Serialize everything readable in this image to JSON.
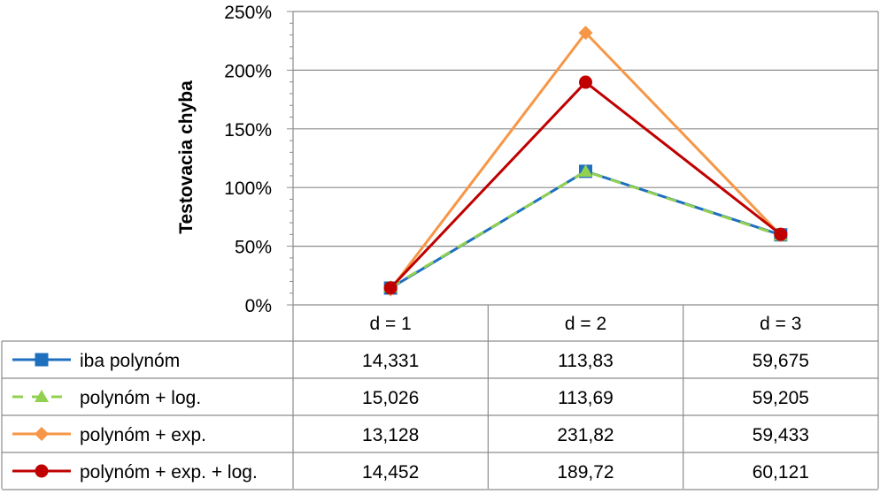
{
  "chart_data": {
    "type": "line",
    "title": "",
    "ylabel": "Testovacia chyba",
    "xlabel": "",
    "categories": [
      "d = 1",
      "d = 2",
      "d = 3"
    ],
    "ylim": [
      0,
      250
    ],
    "y_ticks": [
      0,
      50,
      100,
      150,
      200,
      250
    ],
    "y_tick_labels": [
      "0%",
      "50%",
      "100%",
      "150%",
      "200%",
      "250%"
    ],
    "grid": "horizontal",
    "legend": "data-table",
    "series": [
      {
        "name": "iba polynóm",
        "values": [
          14.331,
          113.83,
          59.675
        ],
        "labels": [
          "14,331",
          "113,83",
          "59,675"
        ],
        "color": "#1f6fbf",
        "marker": "square",
        "dash": "solid"
      },
      {
        "name": "polynóm + log.",
        "values": [
          15.026,
          113.69,
          59.205
        ],
        "labels": [
          "15,026",
          "113,69",
          "59,205"
        ],
        "color": "#92d050",
        "marker": "triangle",
        "dash": "dashed"
      },
      {
        "name": "polynóm + exp.",
        "values": [
          13.128,
          231.82,
          59.433
        ],
        "labels": [
          "13,128",
          "231,82",
          "59,433"
        ],
        "color": "#f79646",
        "marker": "diamond",
        "dash": "solid"
      },
      {
        "name": "polynóm + exp. + log.",
        "values": [
          14.452,
          189.72,
          60.121
        ],
        "labels": [
          "14,452",
          "189,72",
          "60,121"
        ],
        "color": "#c00000",
        "marker": "circle",
        "dash": "solid"
      }
    ]
  }
}
